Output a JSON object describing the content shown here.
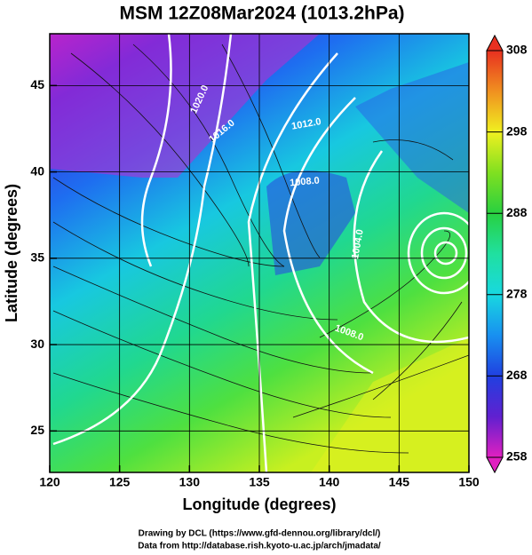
{
  "title": "MSM 12Z08Mar2024 (1013.2hPa)",
  "x_axis": {
    "label": "Longitude (degrees)",
    "lim": [
      120,
      150
    ],
    "ticks": [
      120,
      125,
      130,
      135,
      140,
      145,
      150
    ]
  },
  "y_axis": {
    "label": "Latitude  (degrees)",
    "lim": [
      22.6,
      48
    ],
    "ticks": [
      25,
      30,
      35,
      40,
      45
    ]
  },
  "colorbar": {
    "lim": [
      258,
      308
    ],
    "ticks": [
      258,
      268,
      278,
      288,
      298,
      308
    ]
  },
  "contour_labels": [
    "1020.0",
    "1016.0",
    "1012.0",
    "1008.0",
    "1004.0",
    "1008.0"
  ],
  "credits": [
    "Drawing by DCL (https://www.gfd-dennou.org/library/dcl/)",
    "Data from http://database.rish.kyoto-u.ac.jp/arch/jmadata/"
  ]
}
